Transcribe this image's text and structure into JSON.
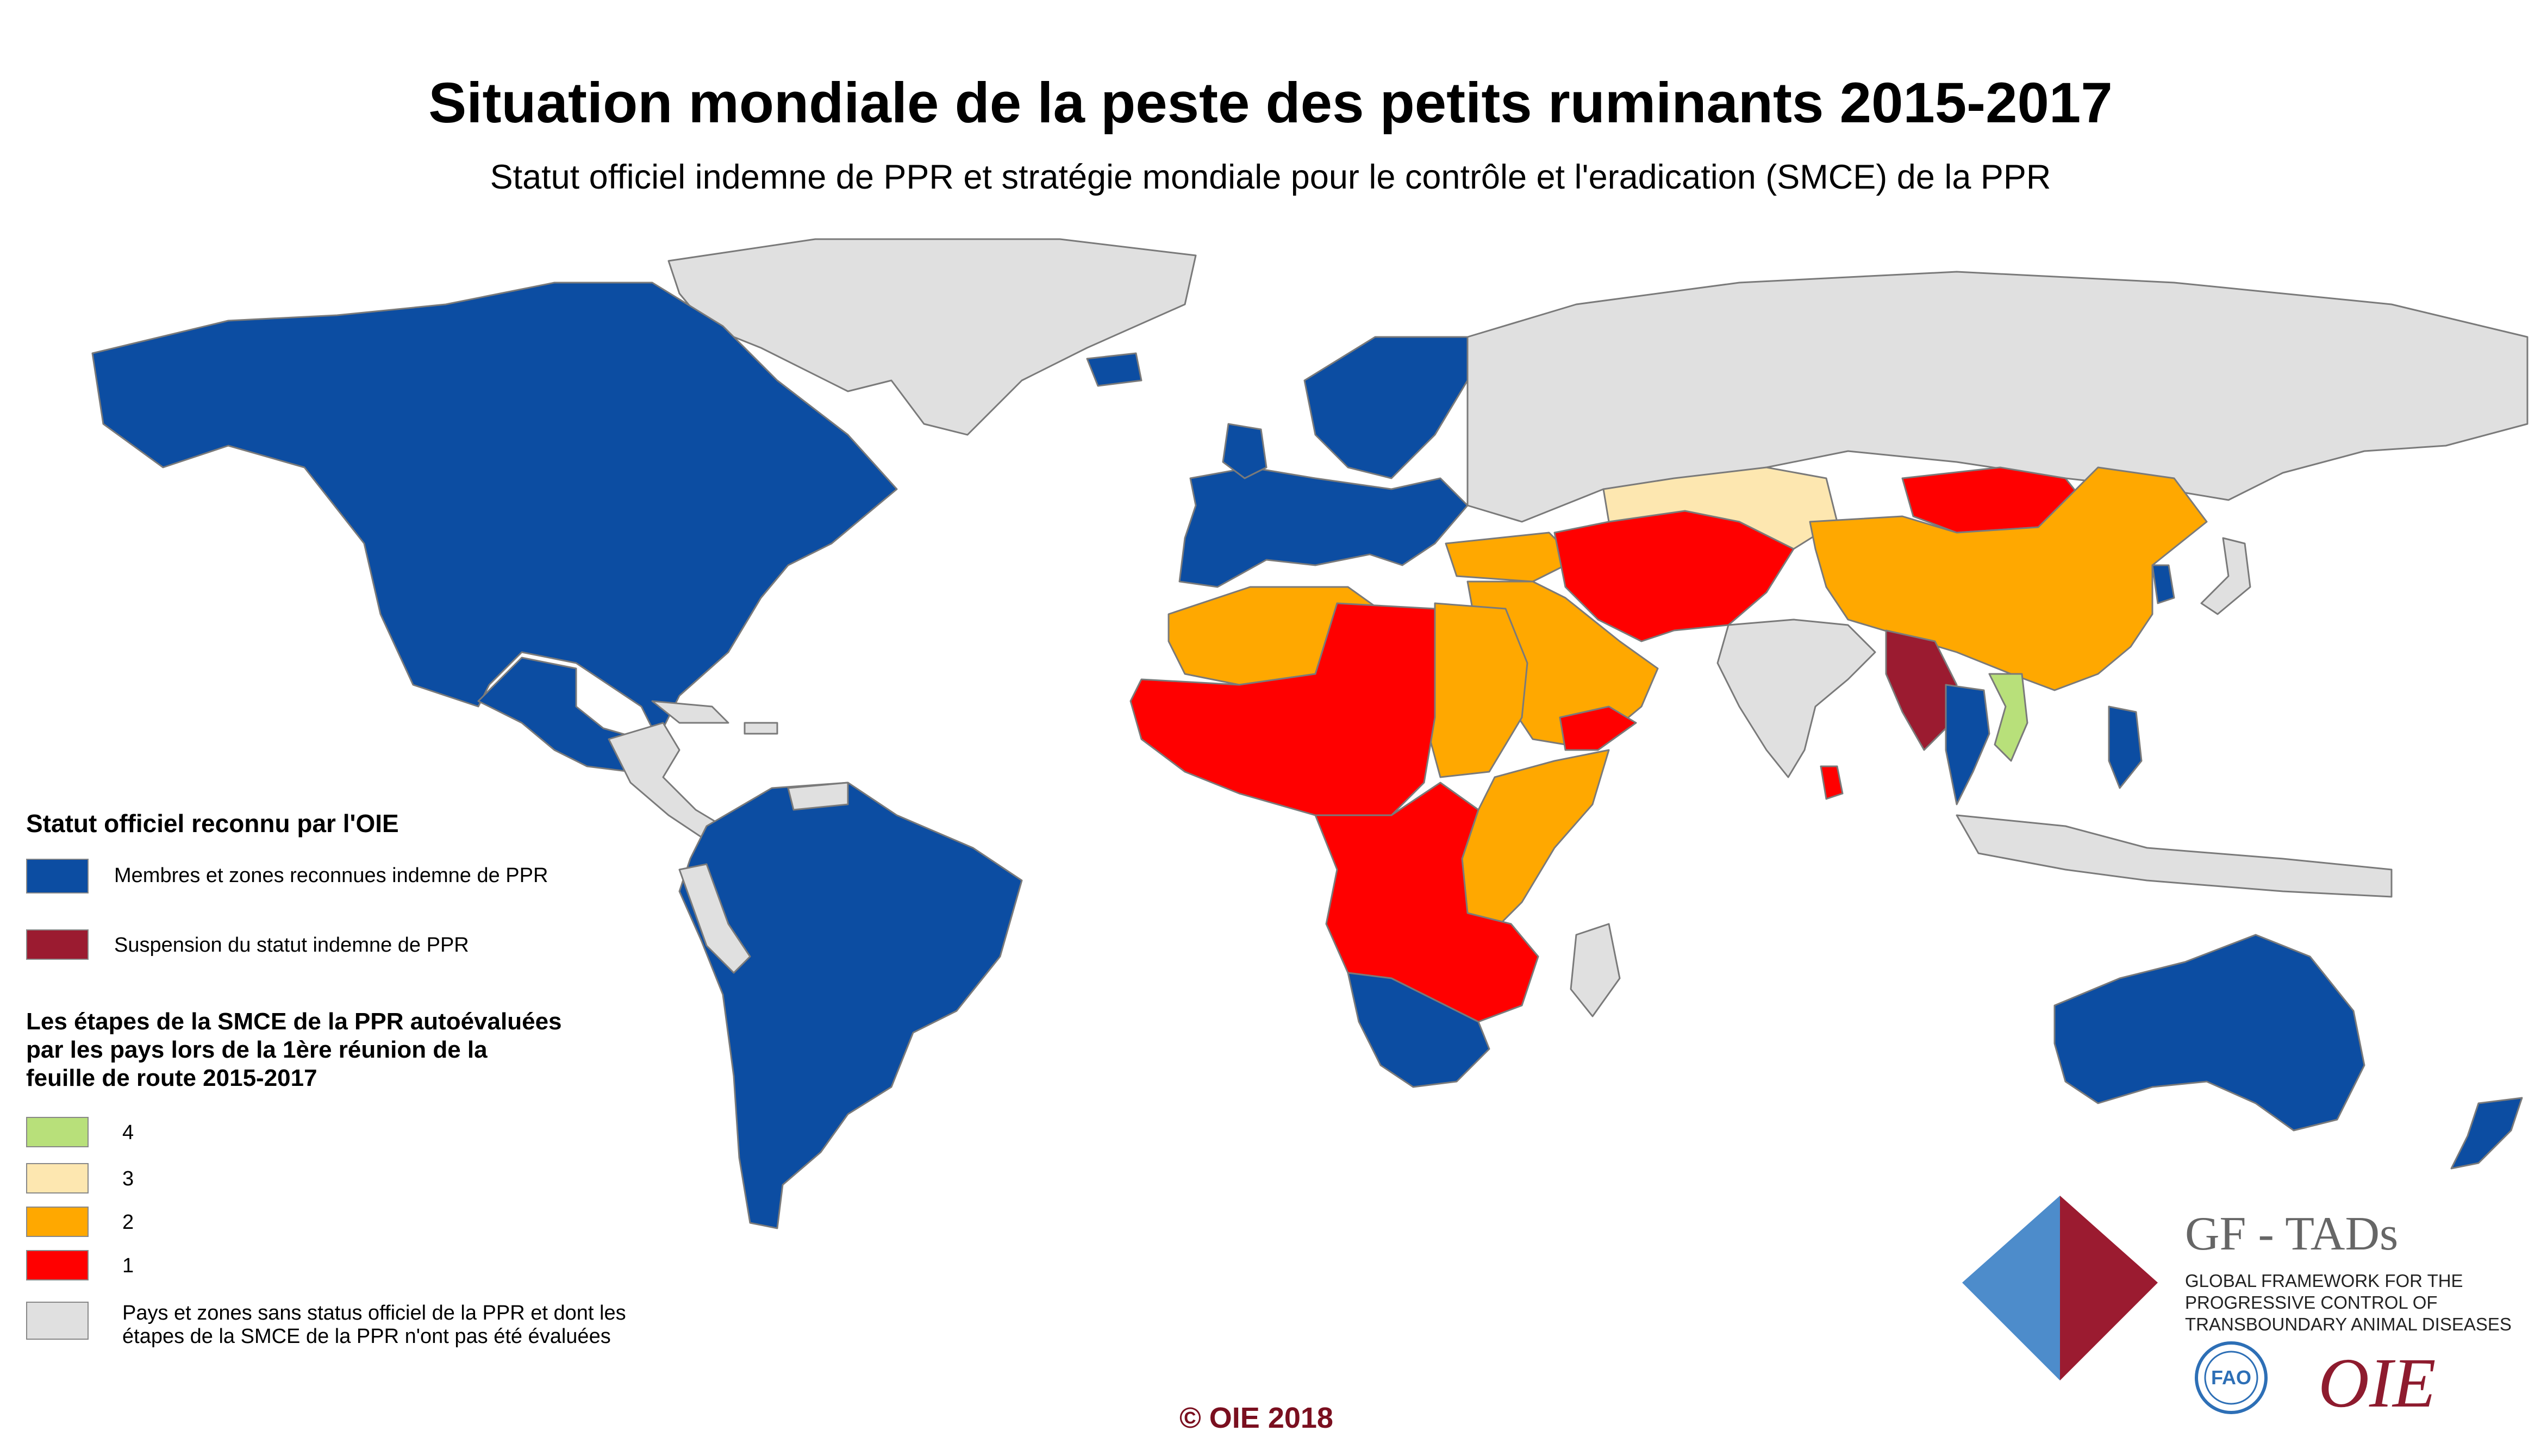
{
  "title": "Situation mondiale de la peste des petits ruminants 2015-2017",
  "subtitle": "Statut officiel indemne de PPR et stratégie mondiale pour le contrôle et l'eradication (SMCE) de la PPR",
  "colors": {
    "ocean": "#ffffff",
    "free": "#0c4da2",
    "suspended": "#9b1b30",
    "stage4": "#b8e07a",
    "stage3": "#fde7b0",
    "stage2": "#ffa800",
    "stage1": "#ff0000",
    "none": "#e0e0e0",
    "border": "#7a7a7a"
  },
  "legend": {
    "official_title": "Statut officiel reconnu par l'OIE",
    "free_label": "Membres et zones reconnues indemne de PPR",
    "suspended_label": "Suspension du statut indemne de PPR",
    "stages_title_1": "Les étapes de la SMCE de la PPR autoévaluées",
    "stages_title_2": "par les pays lors de la 1ère réunion de la",
    "stages_title_3": "feuille de route 2015-2017",
    "stage4": "4",
    "stage3": "3",
    "stage2": "2",
    "stage1": "1",
    "none_label_1": "Pays et zones sans status officiel de la PPR et dont les",
    "none_label_2": "étapes de la SMCE de la PPR n'ont pas été évaluées"
  },
  "copyright": "© OIE 2018",
  "logo": {
    "name": "GF - TADs",
    "line1": "GLOBAL FRAMEWORK FOR THE",
    "line2": "PROGRESSIVE CONTROL OF",
    "line3": "TRANSBOUNDARY ANIMAL DISEASES",
    "fao_text": "FAO",
    "oie_text": "OIE"
  }
}
